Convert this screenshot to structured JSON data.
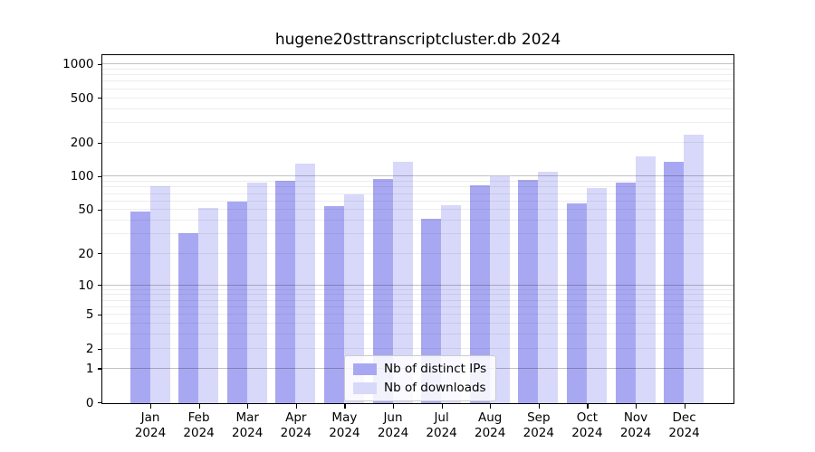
{
  "chart_data": {
    "type": "bar",
    "title": "hugene20sttranscriptcluster.db 2024",
    "categories": [
      "Jan 2024",
      "Feb 2024",
      "Mar 2024",
      "Apr 2024",
      "May 2024",
      "Jun 2024",
      "Jul 2024",
      "Aug 2024",
      "Sep 2024",
      "Oct 2024",
      "Nov 2024",
      "Dec 2024"
    ],
    "series": [
      {
        "name": "Nb of distinct IPs",
        "color": "#a8a8f2",
        "values": [
          49,
          31,
          60,
          92,
          54,
          95,
          42,
          83,
          94,
          58,
          89,
          135
        ]
      },
      {
        "name": "Nb of downloads",
        "color": "#d8d8fa",
        "values": [
          82,
          52,
          88,
          131,
          69,
          136,
          55,
          101,
          110,
          79,
          153,
          238
        ]
      }
    ],
    "yscale": "log10(value+1)",
    "ylabel": "",
    "xlabel": "",
    "yticks": [
      0,
      1,
      2,
      5,
      10,
      20,
      50,
      100,
      200,
      500,
      1000
    ],
    "grid_major_values": [
      1,
      10,
      100,
      1000
    ],
    "grid": "on",
    "legend_position": "lower center inside plot",
    "axis_color": "#000000",
    "background_color": "#ffffff"
  }
}
